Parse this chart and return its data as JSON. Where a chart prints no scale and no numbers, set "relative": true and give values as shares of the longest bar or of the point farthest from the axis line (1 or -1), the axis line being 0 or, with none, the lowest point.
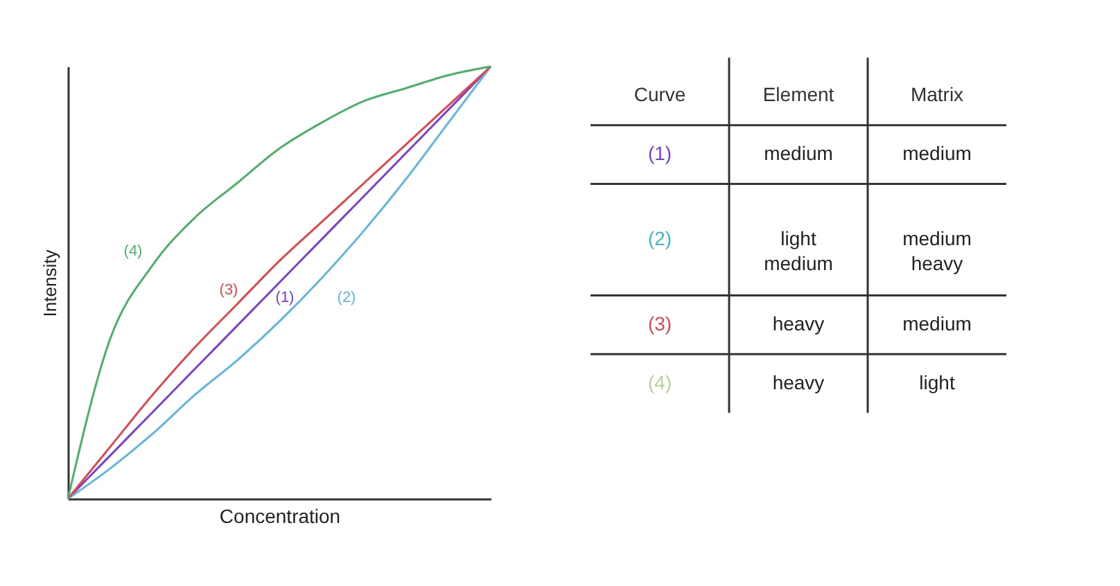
{
  "chart_data": [
    {
      "type": "line",
      "relative": true,
      "xlabel": "Concentration",
      "ylabel": "Intensity",
      "grid": false,
      "legend": false,
      "tick_labels": false,
      "categories": [
        null,
        null,
        null,
        null,
        null,
        null,
        null,
        null,
        null,
        null,
        null
      ],
      "series": [
        {
          "name": "(1)",
          "color": "#7b3fd0",
          "values": [
            0,
            0.1,
            0.2,
            0.3,
            0.4,
            0.5,
            0.6,
            0.7,
            0.8,
            0.9,
            1
          ]
        },
        {
          "name": "(2)",
          "color": "#5fb6e0",
          "values": [
            0,
            0.07,
            0.15,
            0.24,
            0.32,
            0.41,
            0.51,
            0.62,
            0.74,
            0.87,
            1
          ]
        },
        {
          "name": "(3)",
          "color": "#e0474c",
          "values": [
            0,
            0.12,
            0.24,
            0.35,
            0.45,
            0.55,
            0.64,
            0.73,
            0.82,
            0.91,
            1
          ]
        },
        {
          "name": "(4)",
          "color": "#4caf6a",
          "values": [
            0,
            0.37,
            0.54,
            0.65,
            0.73,
            0.81,
            0.87,
            0.92,
            0.95,
            0.98,
            1
          ]
        }
      ]
    },
    {
      "type": "other",
      "categories": [
        "Curve",
        "Element",
        "Matrix"
      ],
      "y_categories": [
        "(1)",
        "(2)",
        "(3)",
        "(4)"
      ],
      "colors": [
        "#7b3fd0",
        "#3fb8c8",
        "#e0474c",
        "#b8d49a"
      ],
      "cell_labels": [
        [
          "medium",
          "medium"
        ],
        [
          "light\nmedium",
          "medium\nheavy"
        ],
        [
          "heavy",
          "medium"
        ],
        [
          "heavy",
          "light"
        ]
      ]
    }
  ]
}
